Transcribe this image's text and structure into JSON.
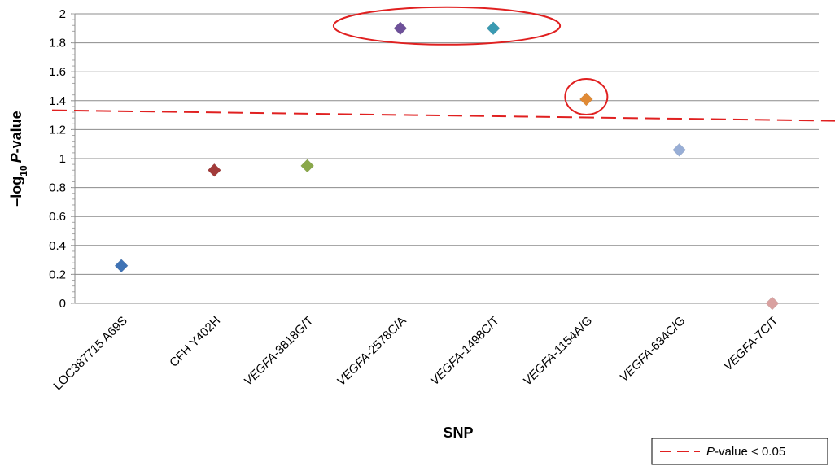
{
  "chart_data": {
    "type": "scatter",
    "title": "",
    "xlabel": "SNP",
    "ylabel_prefix": "–log",
    "ylabel_sub": "10",
    "ylabel_italic": "P",
    "ylabel_suffix": "-value",
    "ylim": [
      0,
      2
    ],
    "yticks": [
      "0",
      "0.2",
      "0.4",
      "0.6",
      "0.8",
      "1",
      "1.2",
      "1.4",
      "1.6",
      "1.8",
      "2"
    ],
    "grid": true,
    "categories": [
      {
        "label": "LOC387715 A69S",
        "italic": "",
        "rest": "LOC387715 A69S"
      },
      {
        "label": "CFH Y402H",
        "italic": "",
        "rest": "CFH Y402H"
      },
      {
        "label": "VEGFA-3818G/T",
        "italic": "VEGFA",
        "rest": "-3818G/T"
      },
      {
        "label": "VEGFA-2578C/A",
        "italic": "VEGFA",
        "rest": "-2578C/A"
      },
      {
        "label": "VEGFA-1498C/T",
        "italic": "VEGFA",
        "rest": "-1498C/T"
      },
      {
        "label": "VEGFA-1154A/G",
        "italic": "VEGFA",
        "rest": "-1154A/G"
      },
      {
        "label": "VEGFA-634C/G",
        "italic": "VEGFA",
        "rest": "-634C/G"
      },
      {
        "label": "VEGFA-7C/T",
        "italic": "VEGFA",
        "rest": "-7C/T"
      }
    ],
    "values": [
      0.26,
      0.92,
      0.95,
      1.9,
      1.9,
      1.41,
      1.06,
      0.0
    ],
    "marker_colors": [
      "#3F73B5",
      "#A23B3A",
      "#8AA84A",
      "#6E519A",
      "#3A9AB2",
      "#E08A35",
      "#98AED6",
      "#D9A1A0"
    ],
    "threshold": {
      "value": 1.3,
      "style": "dashed",
      "color": "#E02020"
    },
    "highlighted_groups": [
      [
        "VEGFA-2578C/A",
        "VEGFA-1498C/T"
      ],
      [
        "VEGFA-1154A/G"
      ]
    ],
    "highlight_color": "#E02020",
    "legend": {
      "placement": "bottom-right",
      "italic": "P",
      "text": "-value < 0.05"
    }
  }
}
